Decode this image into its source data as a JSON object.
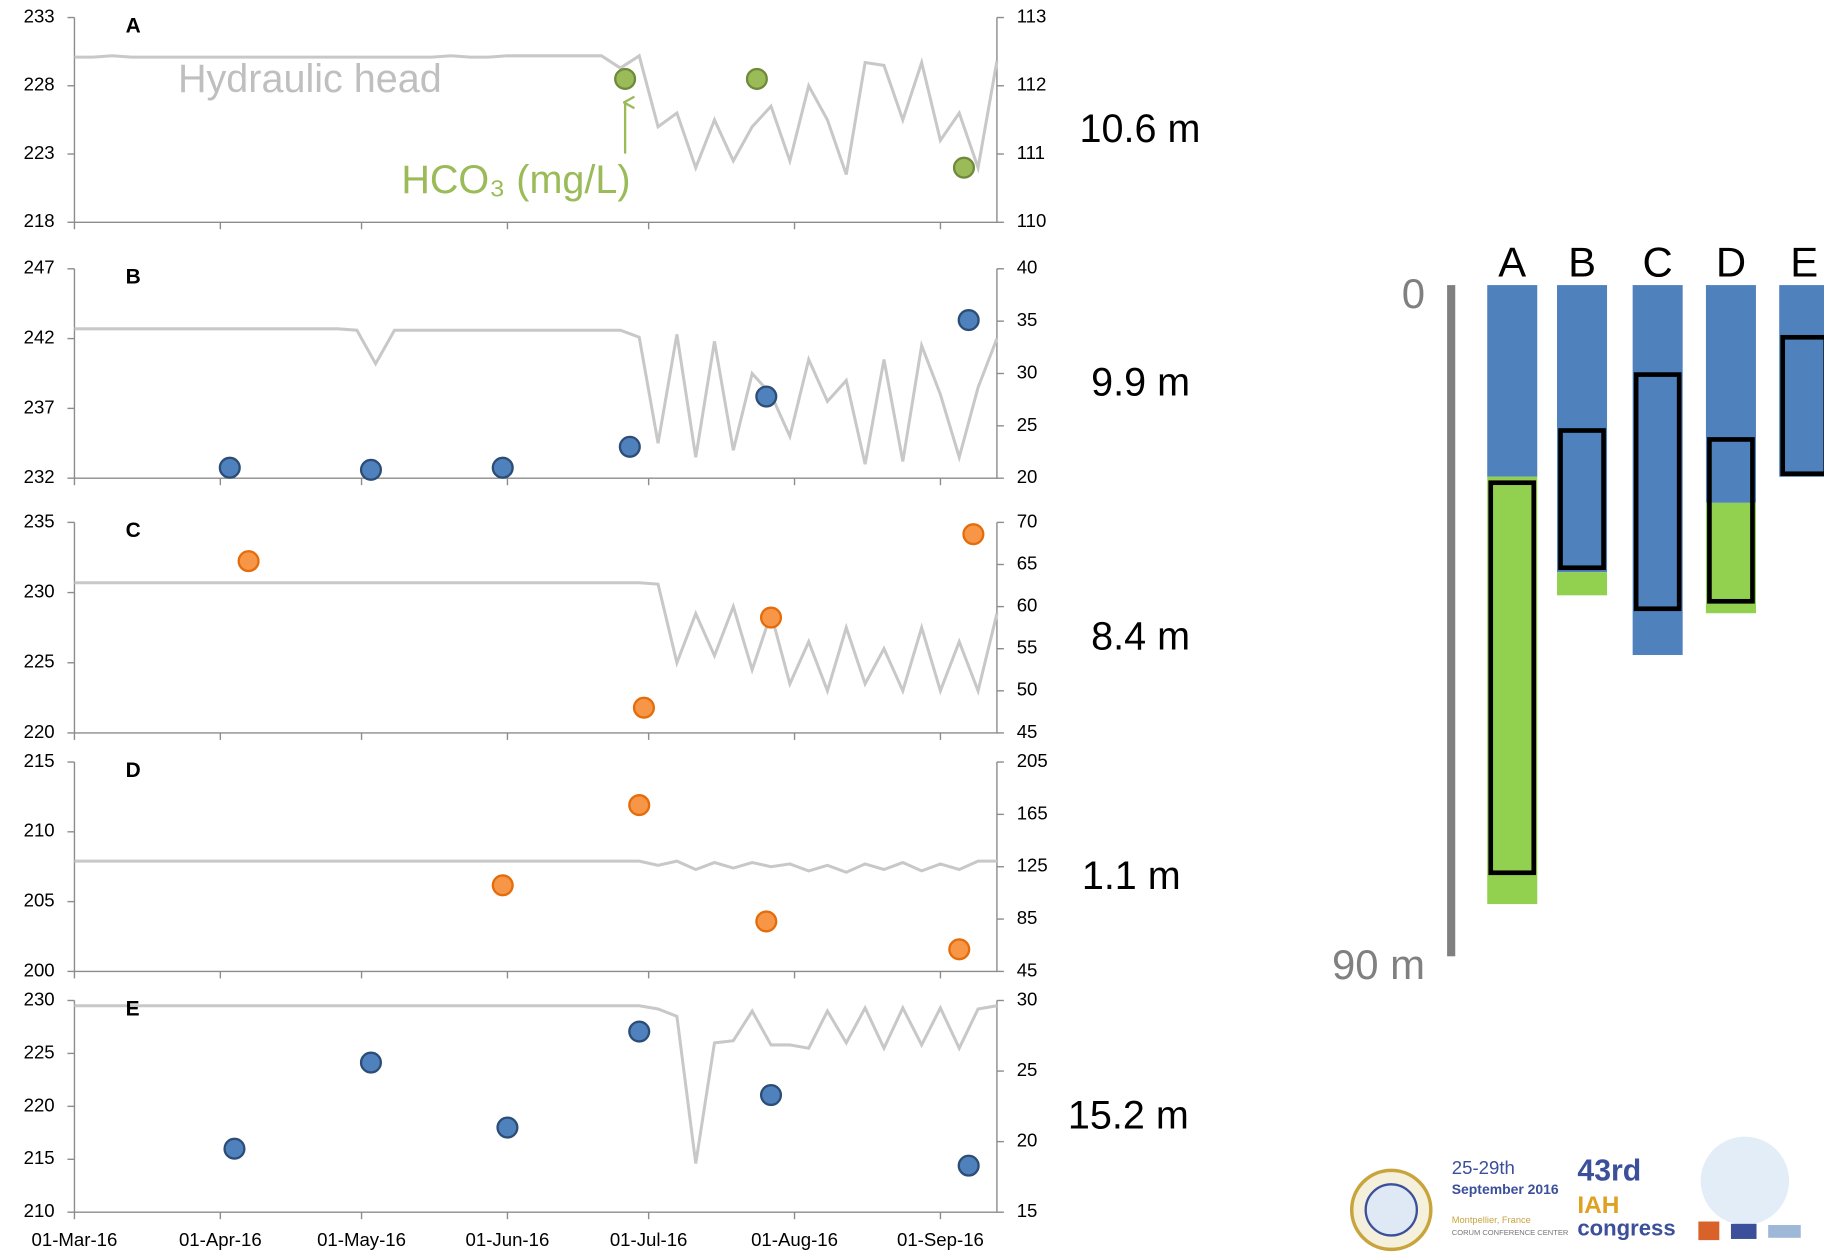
{
  "chart_data": [
    {
      "type": "line",
      "line_color": "#c8c8c8",
      "xlim": [
        "2016-03-01",
        "2016-09-13"
      ],
      "xticks": [
        {
          "value": "2016-03-01",
          "label": "01-Mar-16"
        },
        {
          "value": "2016-04-01",
          "label": "01-Apr-16"
        },
        {
          "value": "2016-05-01",
          "label": "01-May-16"
        },
        {
          "value": "2016-06-01",
          "label": "01-Jun-16"
        },
        {
          "value": "2016-07-01",
          "label": "01-Jul-16"
        },
        {
          "value": "2016-08-01",
          "label": "01-Aug-16"
        },
        {
          "value": "2016-09-01",
          "label": "01-Sep-16"
        }
      ],
      "x": [
        "2016-03-01",
        "2016-03-05",
        "2016-03-09",
        "2016-03-13",
        "2016-03-17",
        "2016-03-21",
        "2016-03-25",
        "2016-03-29",
        "2016-04-02",
        "2016-04-06",
        "2016-04-10",
        "2016-04-14",
        "2016-04-18",
        "2016-04-22",
        "2016-04-26",
        "2016-04-30",
        "2016-05-04",
        "2016-05-08",
        "2016-05-12",
        "2016-05-16",
        "2016-05-20",
        "2016-05-24",
        "2016-05-28",
        "2016-06-01",
        "2016-06-05",
        "2016-06-09",
        "2016-06-13",
        "2016-06-17",
        "2016-06-21",
        "2016-06-25",
        "2016-06-29",
        "2016-07-03",
        "2016-07-07",
        "2016-07-11",
        "2016-07-15",
        "2016-07-19",
        "2016-07-23",
        "2016-07-27",
        "2016-07-31",
        "2016-08-04",
        "2016-08-08",
        "2016-08-12",
        "2016-08-16",
        "2016-08-20",
        "2016-08-24",
        "2016-08-28",
        "2016-09-01",
        "2016-09-05",
        "2016-09-09",
        "2016-09-13"
      ],
      "panels": [
        {
          "label": "A",
          "depth": "10.6 m",
          "head_label": "Hydraulic head",
          "sample_label": "HCO₃ (mg/L)",
          "ylim": [
            218,
            233
          ],
          "yticks": [
            218,
            223,
            228,
            233
          ],
          "y2lim": [
            110,
            113
          ],
          "y2ticks": [
            110,
            111,
            112,
            113
          ],
          "head": [
            230.1,
            230.1,
            230.2,
            230.1,
            230.1,
            230.1,
            230.1,
            230.1,
            230.1,
            230.1,
            230.1,
            230.1,
            230.1,
            230.1,
            230.1,
            230.1,
            230.1,
            230.1,
            230.1,
            230.1,
            230.2,
            230.1,
            230.1,
            230.2,
            230.2,
            230.2,
            230.2,
            230.2,
            230.2,
            229.3,
            230.2,
            225.0,
            226.0,
            222.0,
            225.5,
            222.5,
            225.0,
            226.5,
            222.5,
            228.0,
            225.5,
            221.5,
            229.7,
            229.5,
            225.5,
            229.7,
            224.0,
            226.0,
            222.0,
            229.8
          ],
          "samples": {
            "axis": "y2",
            "color": "#9bbb59",
            "edge": "#6f8a3a",
            "x": [
              "2016-06-26",
              "2016-07-24",
              "2016-09-06"
            ],
            "values": [
              112.1,
              112.1,
              110.8
            ]
          }
        },
        {
          "label": "B",
          "depth": "9.9 m",
          "ylim": [
            232,
            247
          ],
          "yticks": [
            232,
            237,
            242,
            247
          ],
          "y2lim": [
            20,
            40
          ],
          "y2ticks": [
            20,
            25,
            30,
            35,
            40
          ],
          "head": [
            242.7,
            242.7,
            242.7,
            242.7,
            242.7,
            242.7,
            242.7,
            242.7,
            242.7,
            242.7,
            242.7,
            242.7,
            242.7,
            242.7,
            242.7,
            242.6,
            240.2,
            242.6,
            242.6,
            242.6,
            242.6,
            242.6,
            242.6,
            242.6,
            242.6,
            242.6,
            242.6,
            242.6,
            242.6,
            242.6,
            242.1,
            234.5,
            242.3,
            233.5,
            241.8,
            234.0,
            239.5,
            238.0,
            235.0,
            240.5,
            237.5,
            239.0,
            233.0,
            240.5,
            233.2,
            241.5,
            238.0,
            233.5,
            238.5,
            242.0
          ],
          "samples": {
            "axis": "y2",
            "color": "#4f81bd",
            "edge": "#2c4d75",
            "x": [
              "2016-04-03",
              "2016-05-03",
              "2016-05-31",
              "2016-06-27",
              "2016-07-26",
              "2016-09-07"
            ],
            "values": [
              21.0,
              20.8,
              21.0,
              23.0,
              27.8,
              35.1
            ]
          }
        },
        {
          "label": "C",
          "depth": "8.4 m",
          "ylim": [
            220,
            235
          ],
          "yticks": [
            220,
            225,
            230,
            235
          ],
          "y2lim": [
            45,
            70
          ],
          "y2ticks": [
            45,
            50,
            55,
            60,
            65,
            70
          ],
          "head": [
            230.7,
            230.7,
            230.7,
            230.7,
            230.7,
            230.7,
            230.7,
            230.7,
            230.7,
            230.7,
            230.7,
            230.7,
            230.7,
            230.7,
            230.7,
            230.7,
            230.7,
            230.7,
            230.7,
            230.7,
            230.7,
            230.7,
            230.7,
            230.7,
            230.7,
            230.7,
            230.7,
            230.7,
            230.7,
            230.7,
            230.7,
            230.6,
            225.0,
            228.5,
            225.5,
            229.0,
            224.5,
            228.5,
            223.5,
            226.5,
            223.0,
            227.5,
            223.5,
            226.0,
            223.0,
            227.5,
            223.0,
            226.5,
            223.0,
            228.5
          ],
          "samples": {
            "axis": "y2",
            "color": "#f79646",
            "edge": "#e46c0a",
            "x": [
              "2016-04-07",
              "2016-06-30",
              "2016-07-27",
              "2016-09-08"
            ],
            "values": [
              65.4,
              48.0,
              58.7,
              68.6
            ]
          }
        },
        {
          "label": "D",
          "depth": "1.1 m",
          "ylim": [
            200,
            215
          ],
          "yticks": [
            200,
            205,
            210,
            215
          ],
          "y2lim": [
            45,
            205
          ],
          "y2ticks": [
            45,
            85,
            125,
            165,
            205
          ],
          "head": [
            207.9,
            207.9,
            207.9,
            207.9,
            207.9,
            207.9,
            207.9,
            207.9,
            207.9,
            207.9,
            207.9,
            207.9,
            207.9,
            207.9,
            207.9,
            207.9,
            207.9,
            207.9,
            207.9,
            207.9,
            207.9,
            207.9,
            207.9,
            207.9,
            207.9,
            207.9,
            207.9,
            207.9,
            207.9,
            207.9,
            207.9,
            207.6,
            207.9,
            207.3,
            207.8,
            207.4,
            207.8,
            207.5,
            207.7,
            207.2,
            207.6,
            207.1,
            207.7,
            207.3,
            207.8,
            207.2,
            207.7,
            207.3,
            207.9,
            207.9
          ],
          "samples": {
            "axis": "y2",
            "color": "#f79646",
            "edge": "#e46c0a",
            "x": [
              "2016-05-31",
              "2016-06-29",
              "2016-07-26",
              "2016-09-05"
            ],
            "values": [
              110.8,
              172.1,
              83.2,
              61.9
            ]
          }
        },
        {
          "label": "E",
          "depth": "15.2 m",
          "ylim": [
            210,
            230
          ],
          "yticks": [
            210,
            215,
            220,
            225,
            230
          ],
          "y2lim": [
            15,
            30
          ],
          "y2ticks": [
            15,
            20,
            25,
            30
          ],
          "head": [
            229.5,
            229.5,
            229.5,
            229.5,
            229.5,
            229.5,
            229.5,
            229.5,
            229.5,
            229.5,
            229.5,
            229.5,
            229.5,
            229.5,
            229.5,
            229.5,
            229.5,
            229.5,
            229.5,
            229.5,
            229.5,
            229.5,
            229.5,
            229.5,
            229.5,
            229.5,
            229.5,
            229.5,
            229.5,
            229.5,
            229.5,
            229.2,
            228.5,
            214.6,
            226.0,
            226.2,
            229.0,
            225.8,
            225.8,
            225.5,
            229.0,
            226.0,
            229.3,
            225.5,
            229.3,
            225.8,
            229.3,
            225.5,
            229.2,
            229.5
          ],
          "samples": {
            "axis": "y2",
            "color": "#4f81bd",
            "edge": "#2c4d75",
            "x": [
              "2016-04-04",
              "2016-05-03",
              "2016-06-01",
              "2016-06-29",
              "2016-07-27",
              "2016-09-07"
            ],
            "values": [
              19.5,
              25.6,
              21.0,
              27.8,
              23.3,
              18.3
            ]
          }
        }
      ]
    },
    {
      "type": "bar",
      "stacked": true,
      "categories": [
        "A",
        "B",
        "C",
        "D",
        "E"
      ],
      "ylim": [
        0,
        90
      ],
      "yticks": [
        0,
        {
          "value": 90,
          "label": "90 m"
        }
      ],
      "axis_color": "#808080",
      "series": [
        {
          "color": "#4f81bd",
          "values": [
            25.7,
            38.5,
            49.6,
            29.2,
            25.7
          ]
        },
        {
          "color": "#92d050",
          "values": [
            57.3,
            3.1,
            0,
            14.8,
            0
          ]
        }
      ],
      "screen_top": [
        26.5,
        19.5,
        12.0,
        20.7,
        7.0
      ],
      "screen_bottom": [
        78.8,
        37.9,
        43.4,
        42.4,
        25.3
      ]
    }
  ],
  "logo": {
    "dates": "25-29th",
    "month": "September 2016",
    "edition": "43rd",
    "org": "IAH",
    "event": "congress",
    "place": "Montpellier, France",
    "venue": "CORUM CONFERENCE CENTER"
  }
}
